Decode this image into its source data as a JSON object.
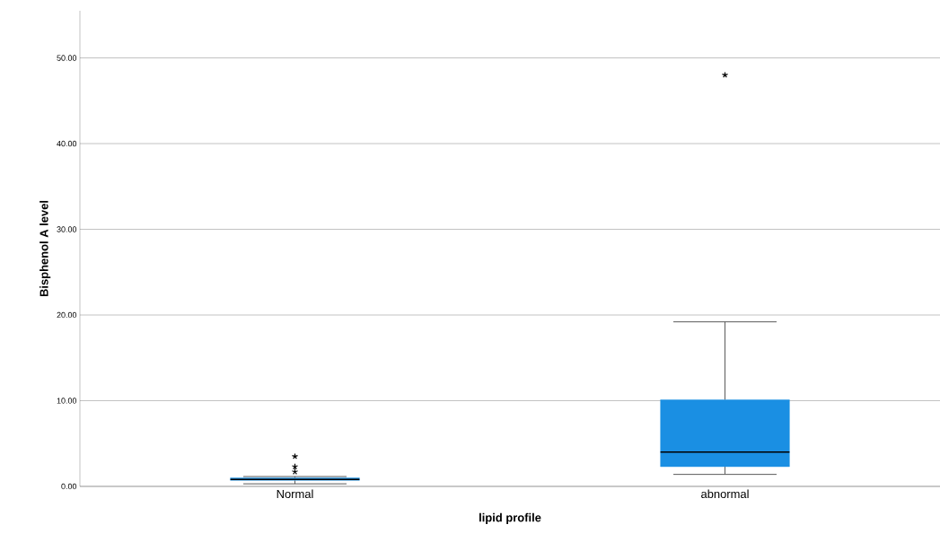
{
  "chart_data": {
    "type": "box",
    "xlabel": "lipid profile",
    "ylabel": "Bisphenol A level",
    "categories": [
      "Normal",
      "abnormal"
    ],
    "boxes": [
      {
        "low": 0.3,
        "q1": 0.7,
        "median": 0.8,
        "q3": 1.0,
        "high": 1.15,
        "outliers": [
          1.7,
          2.3,
          3.5
        ]
      },
      {
        "low": 1.4,
        "q1": 2.3,
        "median": 4.0,
        "q3": 10.1,
        "high": 19.2,
        "outliers": [
          48
        ]
      }
    ],
    "color": "#1a8fe3",
    "ylim": [
      0,
      55.5
    ],
    "yticks": [
      {
        "value": 0,
        "label": "0.00"
      },
      {
        "value": 10,
        "label": "10.00"
      },
      {
        "value": 20,
        "label": "20.00"
      },
      {
        "value": 30,
        "label": "30.00"
      },
      {
        "value": 40,
        "label": "40.00"
      },
      {
        "value": 50,
        "label": "50.00"
      }
    ],
    "grid": "y",
    "marker": "star"
  }
}
